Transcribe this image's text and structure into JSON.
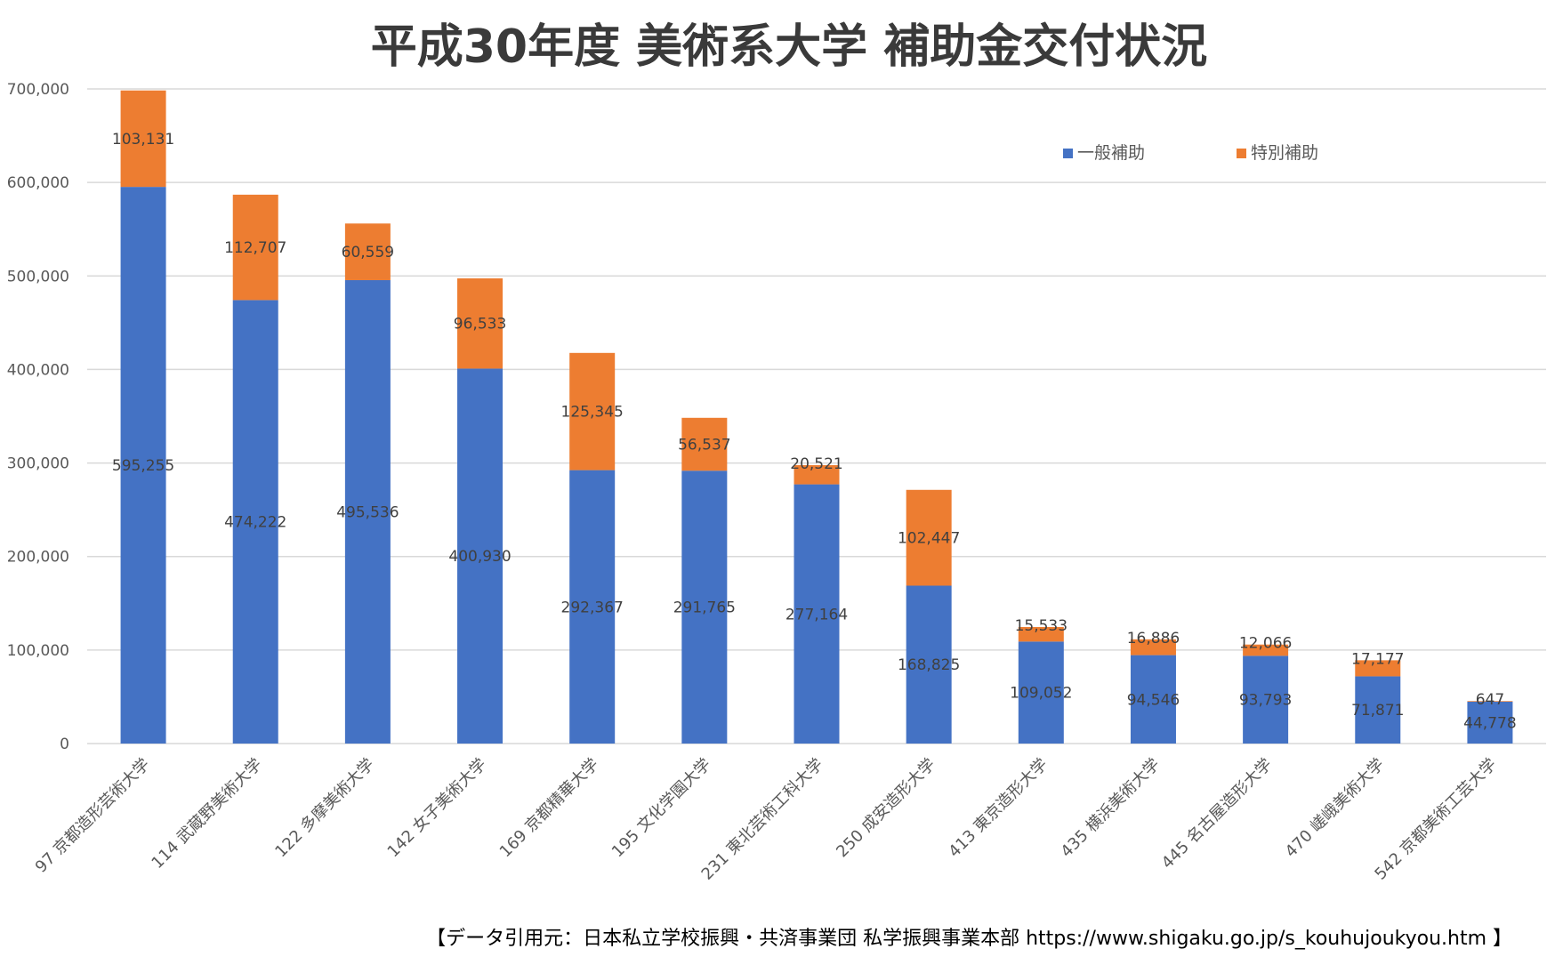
{
  "chart_data": {
    "type": "bar",
    "stacked": true,
    "title": "平成30年度 美術系大学 補助金交付状況",
    "categories": [
      "97 京都造形芸術大学",
      "114 武蔵野美術大学",
      "122 多摩美術大学",
      "142 女子美術大学",
      "169 京都精華大学",
      "195 文化学園大学",
      "231 東北芸術工科大学",
      "250 成安造形大学",
      "413 東京造形大学",
      "435 横浜美術大学",
      "445 名古屋造形大学",
      "470 嵯峨美術大学",
      "542 京都美術工芸大学"
    ],
    "series": [
      {
        "name": "一般補助",
        "color": "#4472c4",
        "values": [
          595255,
          474222,
          495536,
          400930,
          292367,
          291765,
          277164,
          168825,
          109052,
          94546,
          93793,
          71871,
          44778
        ],
        "labels": [
          "595,255",
          "474,222",
          "495,536",
          "400,930",
          "292,367",
          "291,765",
          "277,164",
          "168,825",
          "109,052",
          "94,546",
          "93,793",
          "71,871",
          "44,778"
        ]
      },
      {
        "name": "特別補助",
        "color": "#ed7d31",
        "values": [
          103131,
          112707,
          60559,
          96533,
          125345,
          56537,
          20521,
          102447,
          15533,
          16886,
          12066,
          17177,
          647
        ],
        "labels": [
          "103,131",
          "112,707",
          "60,559",
          "96,533",
          "125,345",
          "56,537",
          "20,521",
          "102,447",
          "15,533",
          "16,886",
          "12,066",
          "17,177",
          "647"
        ]
      }
    ],
    "ylim": [
      0,
      700000
    ],
    "yticks": [
      0,
      100000,
      200000,
      300000,
      400000,
      500000,
      600000,
      700000
    ],
    "ytick_labels": [
      "0",
      "100,000",
      "200,000",
      "300,000",
      "400,000",
      "500,000",
      "600,000",
      "700,000"
    ],
    "grid": true,
    "legend_position": "top-right"
  },
  "source_note": "【データ引用元：日本私立学校振興・共済事業団 私学振興事業本部 https://www.shigaku.go.jp/s_kouhujoukyou.htm 】"
}
